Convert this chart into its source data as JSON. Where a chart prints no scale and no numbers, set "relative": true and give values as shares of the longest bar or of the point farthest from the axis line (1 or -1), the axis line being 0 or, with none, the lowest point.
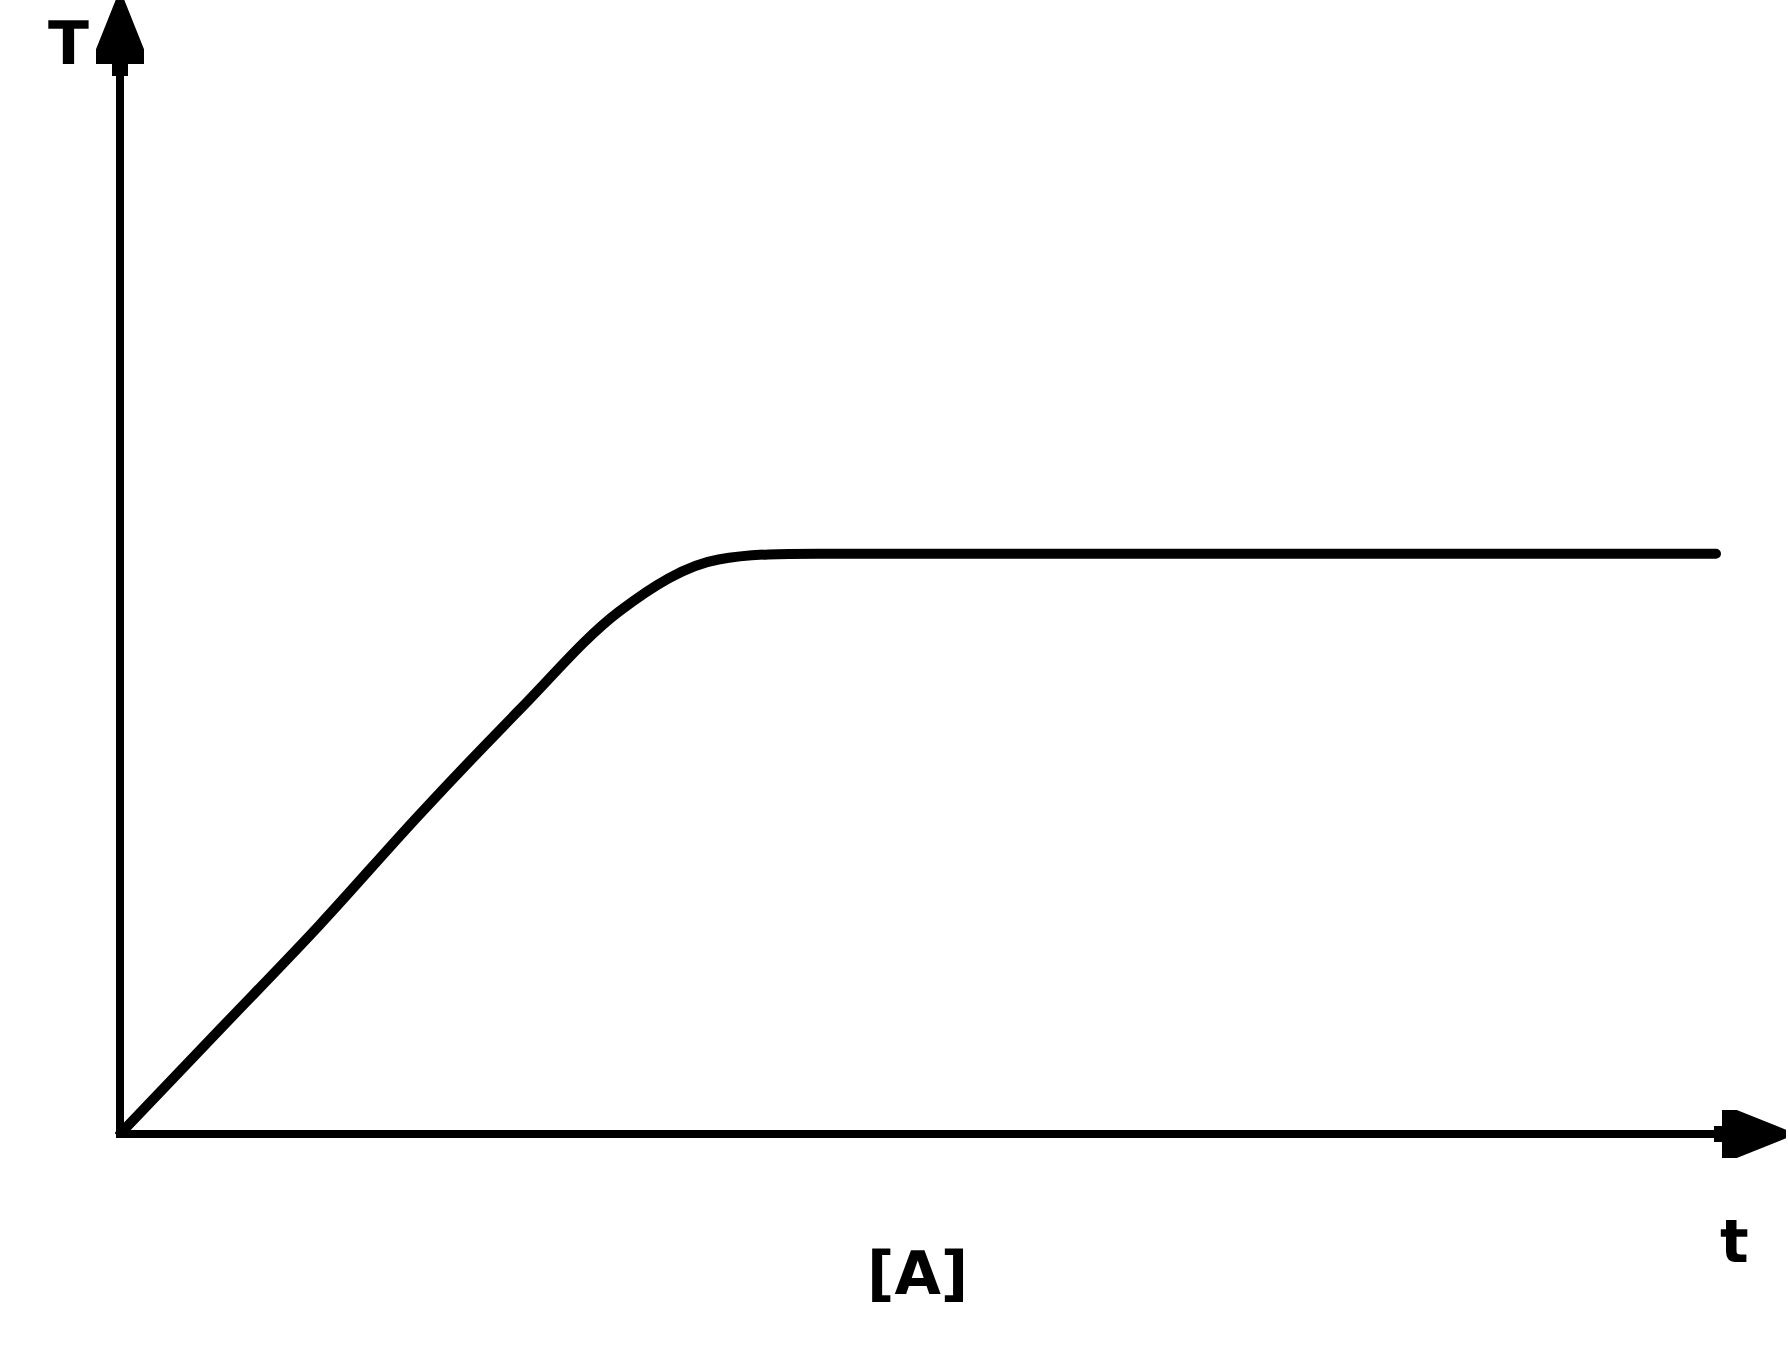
{
  "chart_data": {
    "type": "line",
    "relative": true,
    "xlabel": "t",
    "annotations": [
      "T",
      "[A]"
    ],
    "categories": [
      null,
      null,
      null,
      null,
      null,
      null,
      null,
      null,
      null,
      null,
      null,
      null,
      null,
      null,
      null,
      null,
      null
    ],
    "marker": "none",
    "line_style": "solid",
    "grid": false,
    "series": [
      {
        "color": "#000000",
        "values": [
          0,
          0.18,
          0.36,
          0.55,
          0.73,
          0.9,
          0.99,
          1,
          1,
          1,
          1,
          1,
          1,
          1,
          1,
          1,
          1
        ]
      }
    ]
  }
}
